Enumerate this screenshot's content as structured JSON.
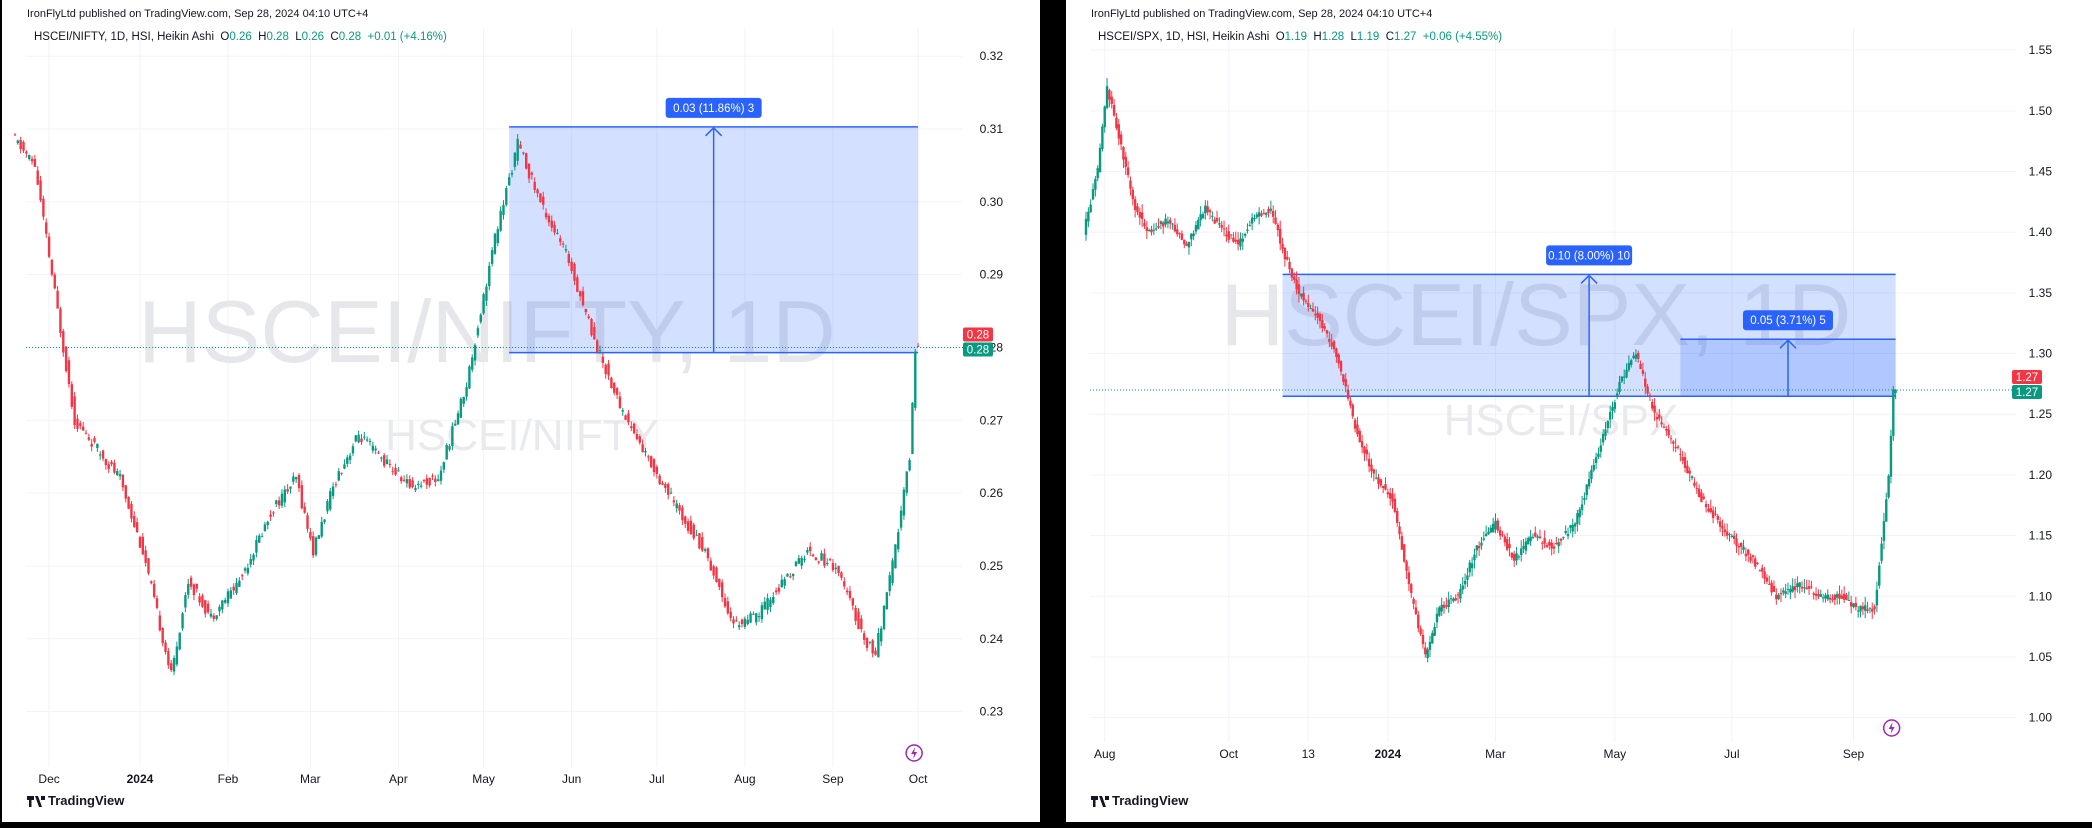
{
  "colors": {
    "up": "#089981",
    "down": "#f23645",
    "box": "#2962ff",
    "boxFill": "rgba(41,98,255,0.2)",
    "grid": "#f0f3fa",
    "lastPrice": "#089981"
  },
  "panels": [
    {
      "published": "IronFlyLtd published on TradingView.com, Sep 28, 2024 04:10 UTC+4",
      "legend": {
        "symbol": "HSCEI/NIFTY, 1D, HSI, Heikin Ashi",
        "o": "0.26",
        "h": "0.28",
        "l": "0.26",
        "c": "0.28",
        "change": "+0.01 (+4.16%)"
      },
      "watermark_big": "HSCEI/NIFTY, 1D",
      "watermark_small": "HSCEI/NIFTY",
      "measure_tag": "0.03 (11.86%) 3",
      "price_tag_red": "0.28",
      "price_tag_green": "0.28",
      "logo": "TradingView",
      "chart_data": {
        "type": "candlestick",
        "y_ticks": [
          0.32,
          0.31,
          0.3,
          0.29,
          0.28,
          0.27,
          0.26,
          0.25,
          0.24,
          0.23
        ],
        "ylim": [
          0.225,
          0.3225
        ],
        "x_ticks": [
          {
            "label": "Dec",
            "d": 12
          },
          {
            "label": "2024",
            "d": 44,
            "bold": true
          },
          {
            "label": "Feb",
            "d": 75
          },
          {
            "label": "Mar",
            "d": 104
          },
          {
            "label": "Apr",
            "d": 135
          },
          {
            "label": "May",
            "d": 165
          },
          {
            "label": "Jun",
            "d": 196
          },
          {
            "label": "Jul",
            "d": 226
          },
          {
            "label": "Aug",
            "d": 257
          },
          {
            "label": "Sep",
            "d": 288
          },
          {
            "label": "Oct",
            "d": 318
          }
        ],
        "anchors": [
          [
            0,
            0.309
          ],
          [
            8,
            0.305
          ],
          [
            14,
            0.29
          ],
          [
            22,
            0.27
          ],
          [
            30,
            0.266
          ],
          [
            38,
            0.262
          ],
          [
            46,
            0.252
          ],
          [
            56,
            0.235
          ],
          [
            62,
            0.248
          ],
          [
            70,
            0.243
          ],
          [
            80,
            0.248
          ],
          [
            92,
            0.258
          ],
          [
            100,
            0.262
          ],
          [
            106,
            0.252
          ],
          [
            114,
            0.262
          ],
          [
            122,
            0.268
          ],
          [
            132,
            0.264
          ],
          [
            140,
            0.261
          ],
          [
            150,
            0.262
          ],
          [
            160,
            0.275
          ],
          [
            170,
            0.295
          ],
          [
            178,
            0.308
          ],
          [
            186,
            0.3
          ],
          [
            196,
            0.292
          ],
          [
            206,
            0.28
          ],
          [
            214,
            0.272
          ],
          [
            222,
            0.266
          ],
          [
            234,
            0.258
          ],
          [
            244,
            0.252
          ],
          [
            254,
            0.242
          ],
          [
            262,
            0.243
          ],
          [
            272,
            0.248
          ],
          [
            280,
            0.252
          ],
          [
            290,
            0.25
          ],
          [
            300,
            0.24
          ],
          [
            304,
            0.238
          ],
          [
            310,
            0.25
          ],
          [
            316,
            0.265
          ],
          [
            318,
            0.28
          ]
        ],
        "measure": {
          "from_d": 174,
          "to_d": 318,
          "low": 0.2793,
          "high": 0.3103,
          "change": "0.03 (11.86%) 3"
        },
        "last_price": 0.28
      }
    },
    {
      "published": "IronFlyLtd published on TradingView.com, Sep 28, 2024 04:10 UTC+4",
      "legend": {
        "symbol": "HSCEI/SPX, 1D, HSI, Heikin Ashi",
        "o": "1.19",
        "h": "1.28",
        "l": "1.19",
        "c": "1.27",
        "change": "+0.06 (+4.55%)"
      },
      "watermark_big": "HSCEI/SPX, 1D",
      "watermark_small": "HSCEI/SPX",
      "measure_tag": "0.10 (8.00%) 10",
      "measure_tag2": "0.05 (3.71%) 5",
      "price_tag_red": "1.27",
      "price_tag_green": "1.27",
      "logo": "TradingView",
      "chart_data": {
        "type": "candlestick",
        "y_ticks": [
          1.55,
          1.5,
          1.45,
          1.4,
          1.35,
          1.3,
          1.25,
          1.2,
          1.15,
          1.1,
          1.05,
          1.0
        ],
        "ylim": [
          0.975,
          1.56
        ],
        "x_ticks": [
          {
            "label": "Aug",
            "d": 8
          },
          {
            "label": "Oct",
            "d": 61
          },
          {
            "label": "13",
            "d": 95
          },
          {
            "label": "2024",
            "d": 129,
            "bold": true
          },
          {
            "label": "Mar",
            "d": 175
          },
          {
            "label": "May",
            "d": 226
          },
          {
            "label": "Jul",
            "d": 276
          },
          {
            "label": "Sep",
            "d": 328
          }
        ],
        "anchors": [
          [
            0,
            1.4
          ],
          [
            6,
            1.45
          ],
          [
            10,
            1.52
          ],
          [
            16,
            1.47
          ],
          [
            22,
            1.42
          ],
          [
            28,
            1.4
          ],
          [
            36,
            1.41
          ],
          [
            44,
            1.39
          ],
          [
            52,
            1.42
          ],
          [
            60,
            1.4
          ],
          [
            66,
            1.39
          ],
          [
            72,
            1.41
          ],
          [
            80,
            1.42
          ],
          [
            86,
            1.38
          ],
          [
            92,
            1.35
          ],
          [
            100,
            1.33
          ],
          [
            108,
            1.3
          ],
          [
            116,
            1.24
          ],
          [
            124,
            1.2
          ],
          [
            132,
            1.18
          ],
          [
            140,
            1.1
          ],
          [
            146,
            1.05
          ],
          [
            152,
            1.09
          ],
          [
            160,
            1.1
          ],
          [
            168,
            1.14
          ],
          [
            176,
            1.16
          ],
          [
            184,
            1.13
          ],
          [
            192,
            1.15
          ],
          [
            200,
            1.14
          ],
          [
            210,
            1.16
          ],
          [
            220,
            1.22
          ],
          [
            230,
            1.28
          ],
          [
            236,
            1.3
          ],
          [
            244,
            1.25
          ],
          [
            254,
            1.22
          ],
          [
            264,
            1.18
          ],
          [
            276,
            1.15
          ],
          [
            286,
            1.13
          ],
          [
            296,
            1.1
          ],
          [
            306,
            1.11
          ],
          [
            316,
            1.1
          ],
          [
            324,
            1.1
          ],
          [
            330,
            1.09
          ],
          [
            338,
            1.09
          ],
          [
            344,
            1.2
          ],
          [
            346,
            1.27
          ]
        ],
        "measure": {
          "from_d": 84,
          "to_d": 346,
          "low": 1.2648,
          "high": 1.3652,
          "change": "0.10 (8.00%) 10"
        },
        "measure2": {
          "from_d": 254,
          "to_d": 346,
          "low": 1.2648,
          "high": 1.3118,
          "change": "0.05 (3.71%) 5"
        },
        "last_price": 1.27
      }
    }
  ]
}
